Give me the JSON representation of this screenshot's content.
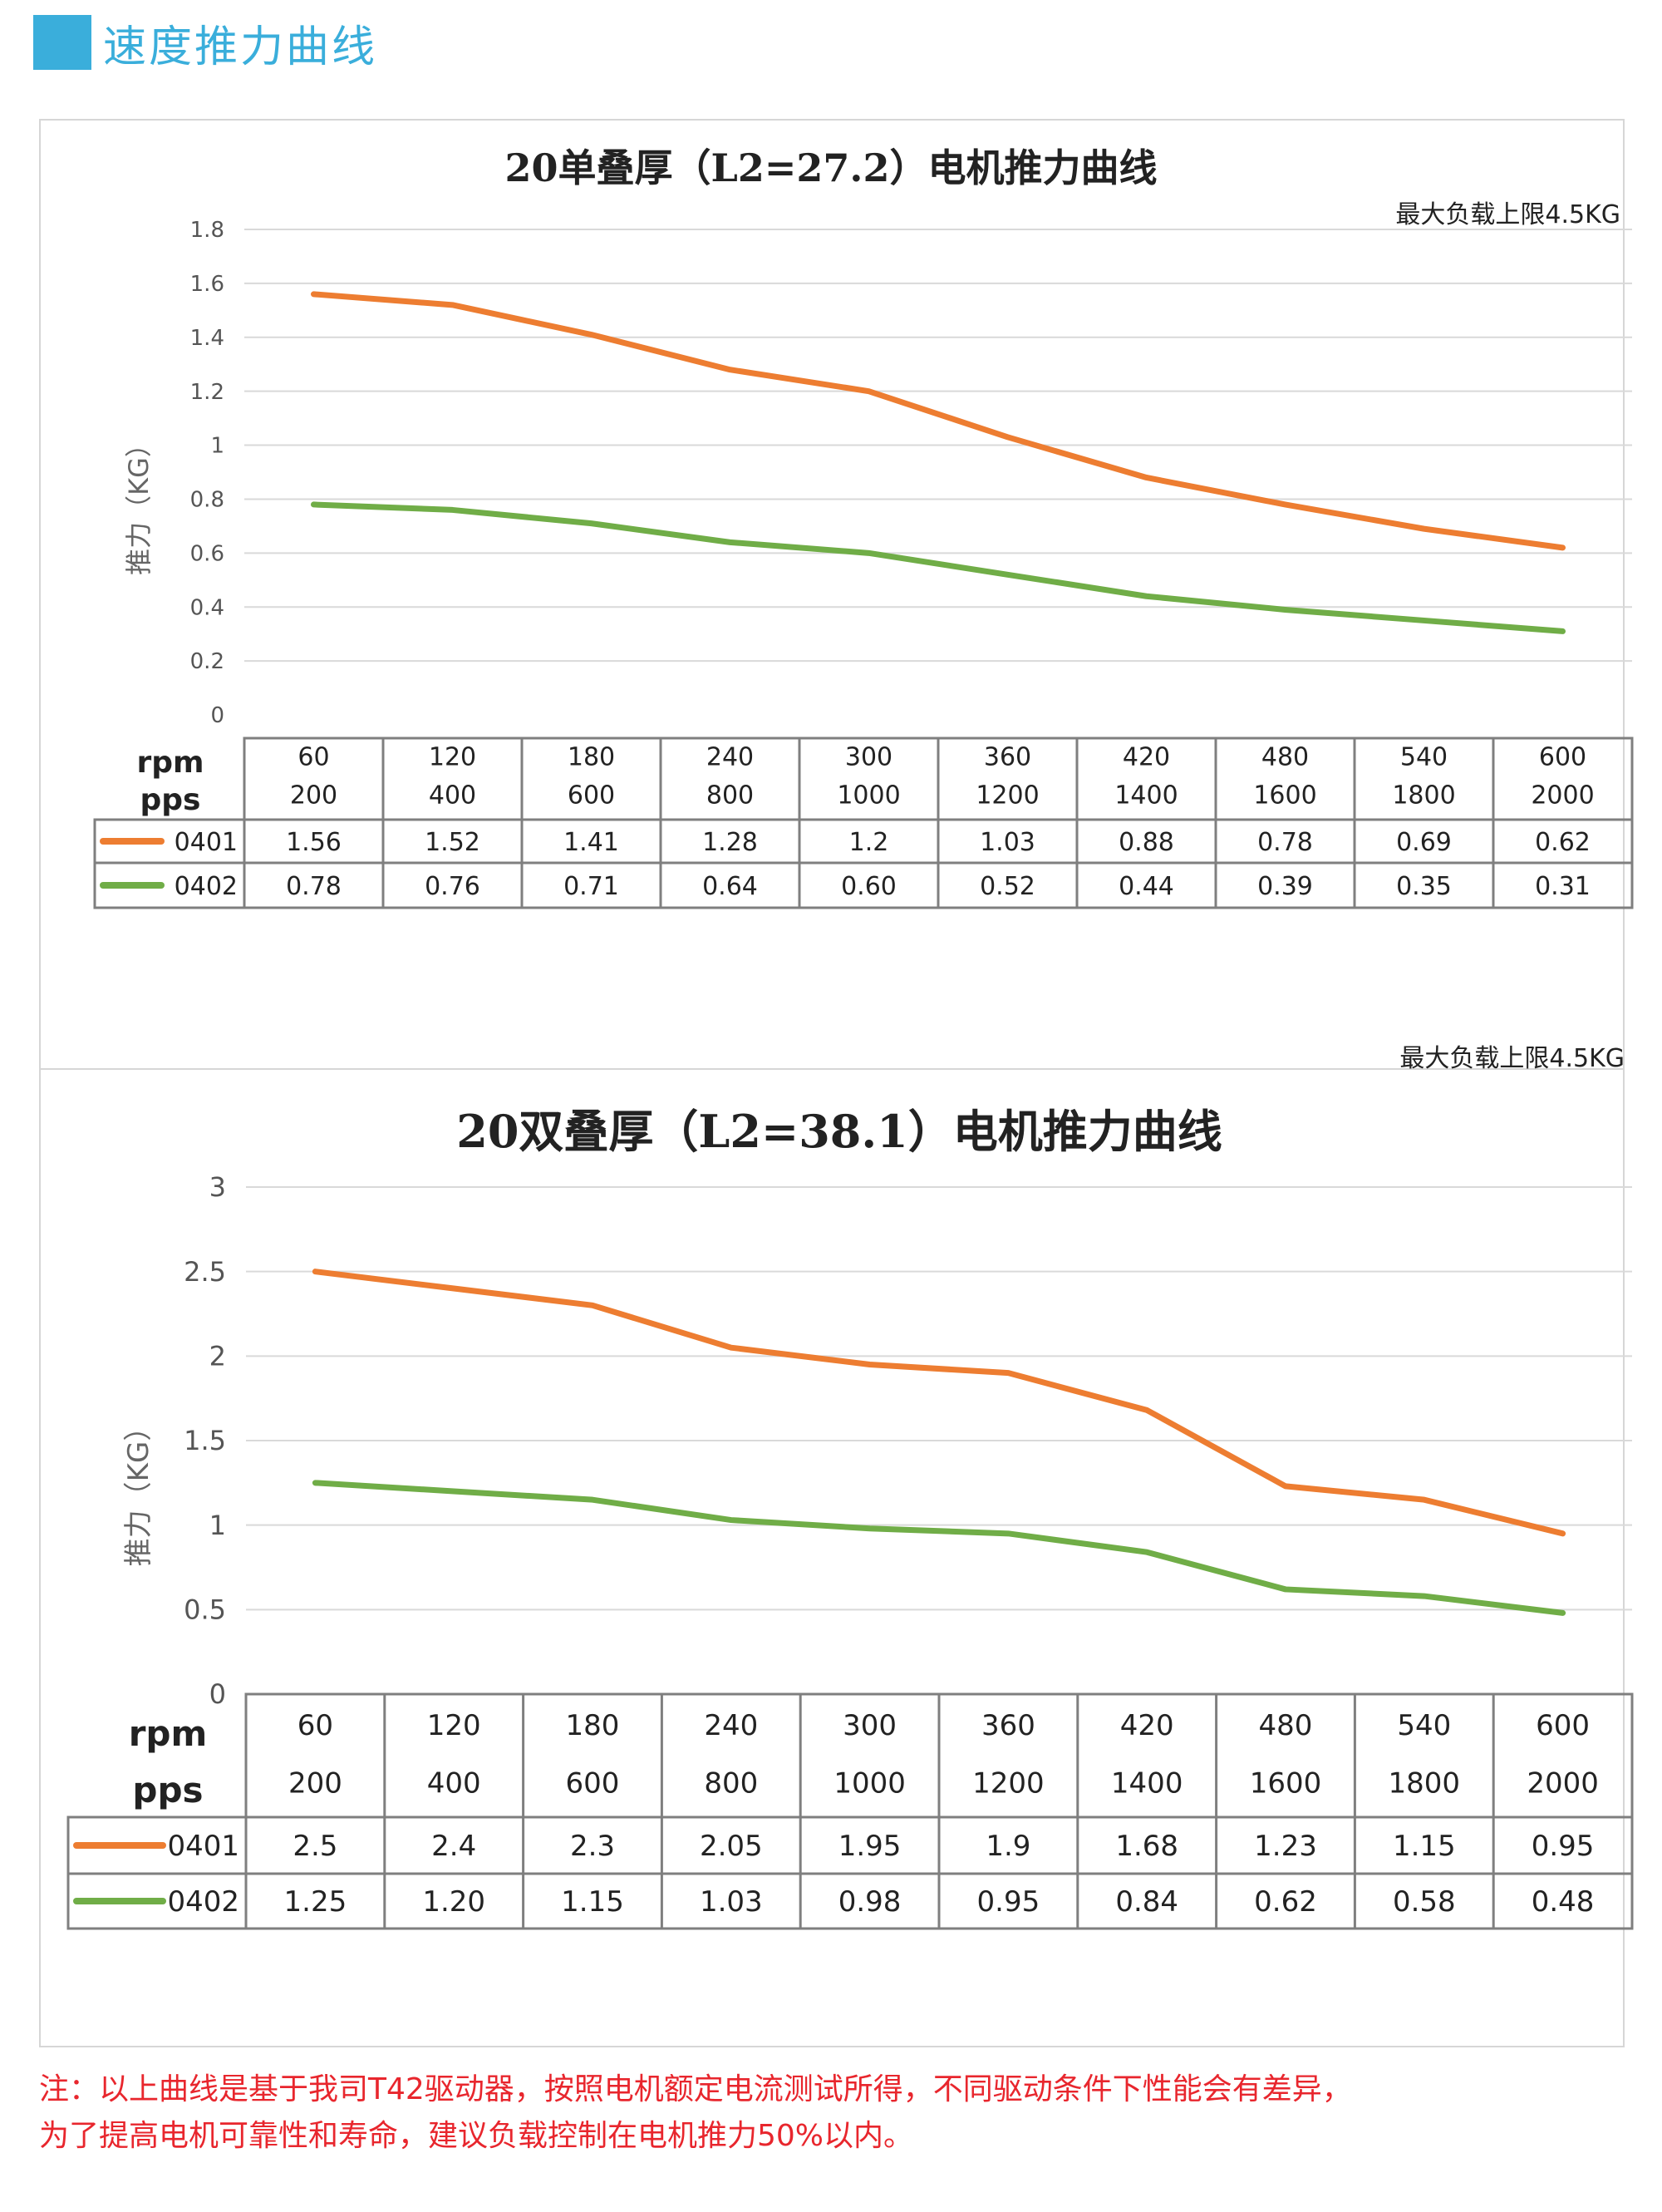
{
  "page": {
    "section_title": "速度推力曲线",
    "note_line1": "注：以上曲线是基于我司T42驱动器，按照电机额定电流测试所得，不同驱动条件下性能会有差异，",
    "note_line2": "为了提高电机可靠性和寿命，建议负载控制在电机推力50%以内。"
  },
  "chart_data": [
    {
      "type": "line",
      "title": "20单叠厚（L2=27.2）电机推力曲线",
      "annotation": "最大负载上限4.5KG",
      "ylabel": "推力（KG）",
      "ylim": [
        0,
        1.8
      ],
      "yticks": [
        "0",
        "0.2",
        "0.4",
        "0.6",
        "0.8",
        "1",
        "1.2",
        "1.4",
        "1.6",
        "1.8"
      ],
      "grid": true,
      "row_labels": [
        "rpm",
        "pps"
      ],
      "rpm": [
        "60",
        "120",
        "180",
        "240",
        "300",
        "360",
        "420",
        "480",
        "540",
        "600"
      ],
      "pps": [
        "200",
        "400",
        "600",
        "800",
        "1000",
        "1200",
        "1400",
        "1600",
        "1800",
        "2000"
      ],
      "series": [
        {
          "name": "0401",
          "color": "#ed7d31",
          "values": [
            1.56,
            1.52,
            1.41,
            1.28,
            1.2,
            1.03,
            0.88,
            0.78,
            0.69,
            0.62
          ],
          "labels": [
            "1.56",
            "1.52",
            "1.41",
            "1.28",
            "1.2",
            "1.03",
            "0.88",
            "0.78",
            "0.69",
            "0.62"
          ]
        },
        {
          "name": "0402",
          "color": "#70ad47",
          "values": [
            0.78,
            0.76,
            0.71,
            0.64,
            0.6,
            0.52,
            0.44,
            0.39,
            0.35,
            0.31
          ],
          "labels": [
            "0.78",
            "0.76",
            "0.71",
            "0.64",
            "0.60",
            "0.52",
            "0.44",
            "0.39",
            "0.35",
            "0.31"
          ]
        }
      ]
    },
    {
      "type": "line",
      "title": "20双叠厚（L2=38.1）电机推力曲线",
      "annotation": "最大负载上限4.5KG",
      "ylabel": "推力（KG）",
      "ylim": [
        0,
        3
      ],
      "yticks": [
        "0",
        "0.5",
        "1",
        "1.5",
        "2",
        "2.5",
        "3"
      ],
      "grid": true,
      "row_labels": [
        "rpm",
        "pps"
      ],
      "rpm": [
        "60",
        "120",
        "180",
        "240",
        "300",
        "360",
        "420",
        "480",
        "540",
        "600"
      ],
      "pps": [
        "200",
        "400",
        "600",
        "800",
        "1000",
        "1200",
        "1400",
        "1600",
        "1800",
        "2000"
      ],
      "series": [
        {
          "name": "0401",
          "color": "#ed7d31",
          "values": [
            2.5,
            2.4,
            2.3,
            2.05,
            1.95,
            1.9,
            1.68,
            1.23,
            1.15,
            0.95
          ],
          "labels": [
            "2.5",
            "2.4",
            "2.3",
            "2.05",
            "1.95",
            "1.9",
            "1.68",
            "1.23",
            "1.15",
            "0.95"
          ]
        },
        {
          "name": "0402",
          "color": "#70ad47",
          "values": [
            1.25,
            1.2,
            1.15,
            1.03,
            0.98,
            0.95,
            0.84,
            0.62,
            0.58,
            0.48
          ],
          "labels": [
            "1.25",
            "1.20",
            "1.15",
            "1.03",
            "0.98",
            "0.95",
            "0.84",
            "0.62",
            "0.58",
            "0.48"
          ]
        }
      ]
    }
  ]
}
